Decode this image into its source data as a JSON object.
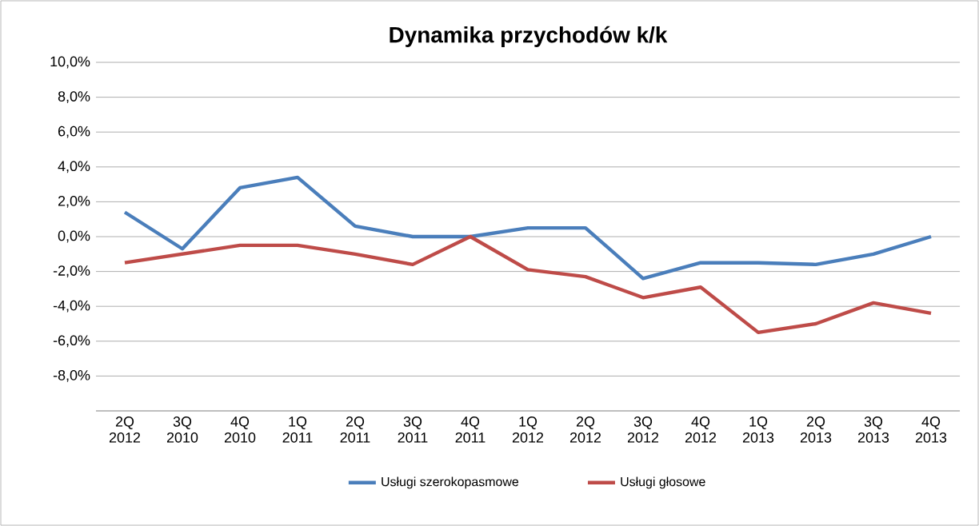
{
  "chart_data": {
    "type": "line",
    "title": "Dynamika przychodów k/k",
    "categories": [
      "2Q 2012",
      "3Q 2010",
      "4Q 2010",
      "1Q 2011",
      "2Q 2011",
      "3Q 2011",
      "4Q 2011",
      "1Q 2012",
      "2Q 2012",
      "3Q 2012",
      "4Q 2012",
      "1Q 2013",
      "2Q 2013",
      "3Q 2013",
      "4Q 2013"
    ],
    "series": [
      {
        "name": "Usługi szerokopasmowe",
        "color": "#4a7ebb",
        "values": [
          1.4,
          -0.7,
          2.8,
          3.4,
          0.6,
          0.0,
          0.0,
          0.5,
          0.5,
          -2.4,
          -1.5,
          -1.5,
          -1.6,
          -1.0,
          0.0
        ]
      },
      {
        "name": "Usługi głosowe",
        "color": "#be4b48",
        "values": [
          -1.5,
          -1.0,
          -0.5,
          -0.5,
          -1.0,
          -1.6,
          0.0,
          -1.9,
          -2.3,
          -3.5,
          -2.9,
          -5.5,
          -5.0,
          -3.8,
          -4.4
        ]
      }
    ],
    "ylim": [
      -10,
      10
    ],
    "yticks": [
      {
        "value": -10,
        "label": null
      },
      {
        "value": -8,
        "label": "-8,0%"
      },
      {
        "value": -6,
        "label": "-6,0%"
      },
      {
        "value": -4,
        "label": "-4,0%"
      },
      {
        "value": -2,
        "label": "-2,0%"
      },
      {
        "value": 0,
        "label": "0,0%"
      },
      {
        "value": 2,
        "label": "2,0%"
      },
      {
        "value": 4,
        "label": "4,0%"
      },
      {
        "value": 6,
        "label": "6,0%"
      },
      {
        "value": 8,
        "label": "8,0%"
      },
      {
        "value": 10,
        "label": "10,0%"
      }
    ],
    "grid": "y",
    "legend": "bottom",
    "marker": "none",
    "line_style": "solid"
  }
}
